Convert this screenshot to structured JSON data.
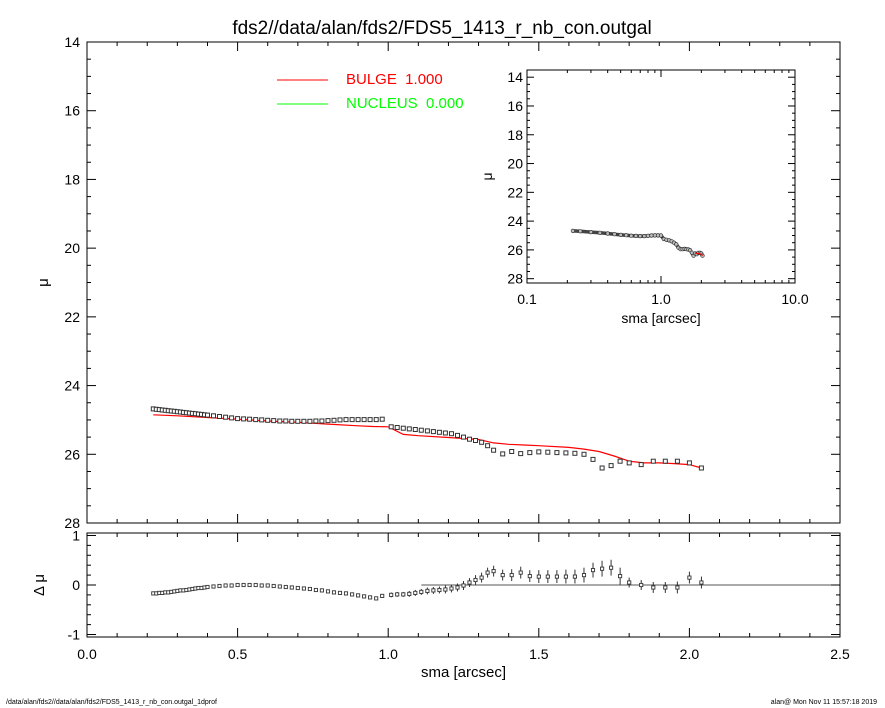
{
  "title": "fds2//data/alan/fds2/FDS5_1413_r_nb_con.outgal",
  "footer": {
    "left": "/data/alan/fds2//data/alan/fds2/FDS5_1413_r_nb_con.outgal_1dprof",
    "right": "alan@  Mon Nov 11 15:57:18 2019"
  },
  "colors": {
    "bulge": "#ff0000",
    "nucleus": "#00ff00",
    "data": "#000000",
    "background": "#ffffff"
  },
  "chart_data": [
    {
      "id": "main-profile",
      "type": "scatter",
      "xlabel": "",
      "ylabel": "μ",
      "xlim": [
        0.0,
        2.5
      ],
      "ylim": [
        28,
        14
      ],
      "y_inverted": true,
      "yticks": [
        14,
        16,
        18,
        20,
        22,
        24,
        26,
        28
      ],
      "ytick_labels": [
        "14",
        "16",
        "18",
        "20",
        "22",
        "24",
        "26",
        "28"
      ],
      "legend": {
        "placement": "top-center",
        "entries": [
          {
            "label": "BULGE  1.000",
            "color": "#ff0000"
          },
          {
            "label": "NUCLEUS  0.000",
            "color": "#00ff00"
          }
        ]
      },
      "series": [
        {
          "name": "BULGE  1.000",
          "kind": "line",
          "color": "#ff0000",
          "x": [
            0.22,
            0.3,
            0.4,
            0.5,
            0.6,
            0.7,
            0.8,
            0.9,
            0.95,
            1.0,
            1.05,
            1.1,
            1.2,
            1.3,
            1.35,
            1.4,
            1.45,
            1.5,
            1.6,
            1.65,
            1.7,
            1.75,
            1.8,
            1.85,
            1.9,
            1.95,
            2.0,
            2.04
          ],
          "y": [
            24.85,
            24.88,
            24.93,
            24.98,
            25.03,
            25.07,
            25.12,
            25.17,
            25.19,
            25.2,
            25.42,
            25.46,
            25.51,
            25.57,
            25.67,
            25.71,
            25.73,
            25.75,
            25.8,
            25.85,
            25.92,
            26.05,
            26.2,
            26.25,
            26.25,
            26.27,
            26.3,
            26.4
          ]
        },
        {
          "name": "",
          "kind": "points",
          "color": "#000000",
          "x": [
            0.22,
            0.23,
            0.24,
            0.25,
            0.26,
            0.27,
            0.28,
            0.29,
            0.3,
            0.31,
            0.32,
            0.33,
            0.34,
            0.35,
            0.36,
            0.37,
            0.38,
            0.39,
            0.4,
            0.42,
            0.44,
            0.46,
            0.48,
            0.5,
            0.52,
            0.54,
            0.56,
            0.58,
            0.6,
            0.62,
            0.64,
            0.66,
            0.68,
            0.7,
            0.72,
            0.74,
            0.76,
            0.78,
            0.8,
            0.82,
            0.84,
            0.86,
            0.88,
            0.9,
            0.92,
            0.94,
            0.96,
            0.98,
            1.01,
            1.03,
            1.05,
            1.07,
            1.09,
            1.11,
            1.13,
            1.15,
            1.17,
            1.19,
            1.21,
            1.23,
            1.25,
            1.27,
            1.29,
            1.31,
            1.33,
            1.35,
            1.38,
            1.41,
            1.44,
            1.47,
            1.5,
            1.53,
            1.56,
            1.59,
            1.62,
            1.65,
            1.68,
            1.71,
            1.74,
            1.77,
            1.8,
            1.84,
            1.88,
            1.92,
            1.96,
            2.0,
            2.04
          ],
          "y": [
            24.68,
            24.69,
            24.7,
            24.71,
            24.72,
            24.73,
            24.74,
            24.75,
            24.76,
            24.77,
            24.78,
            24.79,
            24.8,
            24.81,
            24.82,
            24.83,
            24.84,
            24.85,
            24.86,
            24.88,
            24.9,
            24.92,
            24.94,
            24.96,
            24.97,
            24.98,
            24.99,
            25.0,
            25.01,
            25.02,
            25.03,
            25.03,
            25.04,
            25.04,
            25.04,
            25.04,
            25.03,
            25.03,
            25.02,
            25.01,
            25.0,
            24.99,
            24.99,
            24.99,
            24.99,
            24.99,
            24.99,
            24.98,
            25.2,
            25.22,
            25.24,
            25.26,
            25.28,
            25.3,
            25.32,
            25.34,
            25.36,
            25.38,
            25.4,
            25.45,
            25.5,
            25.56,
            25.6,
            25.65,
            25.75,
            25.88,
            25.99,
            25.92,
            25.98,
            25.95,
            25.93,
            25.94,
            25.95,
            25.96,
            25.97,
            26.0,
            26.15,
            26.4,
            26.33,
            26.2,
            26.25,
            26.3,
            26.2,
            26.2,
            26.2,
            26.25,
            26.4
          ]
        }
      ]
    },
    {
      "id": "residuals",
      "type": "scatter",
      "xlabel": "sma [arcsec]",
      "ylabel": "Δ μ",
      "xlim": [
        0.0,
        2.5
      ],
      "ylim": [
        -1,
        1
      ],
      "xticks": [
        0.0,
        0.5,
        1.0,
        1.5,
        2.0,
        2.5
      ],
      "xtick_labels": [
        "0.0",
        "0.5",
        "1.0",
        "1.5",
        "2.0",
        "2.5"
      ],
      "yticks": [
        -1,
        0,
        1
      ],
      "ytick_labels": [
        "-1",
        "0",
        "1"
      ],
      "zero_line_x": [
        1.11,
        2.5
      ],
      "series": [
        {
          "name": "",
          "kind": "points-with-errors",
          "color": "#000000",
          "x": [
            0.22,
            0.23,
            0.24,
            0.25,
            0.26,
            0.27,
            0.28,
            0.29,
            0.3,
            0.31,
            0.32,
            0.33,
            0.34,
            0.35,
            0.36,
            0.37,
            0.38,
            0.39,
            0.4,
            0.42,
            0.44,
            0.46,
            0.48,
            0.5,
            0.52,
            0.54,
            0.56,
            0.58,
            0.6,
            0.62,
            0.64,
            0.66,
            0.68,
            0.7,
            0.72,
            0.74,
            0.76,
            0.78,
            0.8,
            0.82,
            0.84,
            0.86,
            0.88,
            0.9,
            0.92,
            0.94,
            0.96,
            0.98,
            1.01,
            1.03,
            1.05,
            1.07,
            1.09,
            1.11,
            1.13,
            1.15,
            1.17,
            1.19,
            1.21,
            1.23,
            1.25,
            1.27,
            1.29,
            1.31,
            1.33,
            1.35,
            1.38,
            1.41,
            1.44,
            1.47,
            1.5,
            1.53,
            1.56,
            1.59,
            1.62,
            1.65,
            1.68,
            1.71,
            1.74,
            1.77,
            1.8,
            1.84,
            1.88,
            1.92,
            1.96,
            2.0,
            2.04
          ],
          "y": [
            -0.17,
            -0.17,
            -0.16,
            -0.16,
            -0.15,
            -0.15,
            -0.14,
            -0.13,
            -0.12,
            -0.11,
            -0.11,
            -0.1,
            -0.09,
            -0.08,
            -0.07,
            -0.06,
            -0.06,
            -0.05,
            -0.04,
            -0.03,
            -0.02,
            -0.01,
            -0.01,
            0.0,
            0.0,
            0.0,
            0.0,
            -0.01,
            -0.01,
            -0.02,
            -0.03,
            -0.04,
            -0.05,
            -0.06,
            -0.07,
            -0.08,
            -0.1,
            -0.11,
            -0.13,
            -0.15,
            -0.16,
            -0.17,
            -0.19,
            -0.21,
            -0.23,
            -0.25,
            -0.27,
            -0.22,
            -0.2,
            -0.19,
            -0.19,
            -0.18,
            -0.16,
            -0.14,
            -0.12,
            -0.11,
            -0.1,
            -0.09,
            -0.07,
            -0.05,
            -0.01,
            0.05,
            0.1,
            0.15,
            0.25,
            0.28,
            0.2,
            0.2,
            0.25,
            0.18,
            0.17,
            0.17,
            0.17,
            0.17,
            0.17,
            0.2,
            0.3,
            0.33,
            0.35,
            0.18,
            0.05,
            0.0,
            -0.05,
            -0.05,
            -0.05,
            0.15,
            0.05
          ],
          "yerr": [
            0.02,
            0.02,
            0.02,
            0.02,
            0.02,
            0.02,
            0.02,
            0.02,
            0.02,
            0.02,
            0.02,
            0.02,
            0.02,
            0.02,
            0.02,
            0.02,
            0.02,
            0.02,
            0.02,
            0.02,
            0.02,
            0.02,
            0.02,
            0.02,
            0.02,
            0.02,
            0.02,
            0.02,
            0.02,
            0.02,
            0.02,
            0.02,
            0.02,
            0.02,
            0.02,
            0.02,
            0.02,
            0.02,
            0.02,
            0.02,
            0.02,
            0.02,
            0.02,
            0.02,
            0.02,
            0.02,
            0.02,
            0.03,
            0.05,
            0.05,
            0.05,
            0.06,
            0.06,
            0.06,
            0.07,
            0.07,
            0.07,
            0.08,
            0.08,
            0.08,
            0.09,
            0.09,
            0.1,
            0.1,
            0.1,
            0.11,
            0.11,
            0.12,
            0.12,
            0.12,
            0.13,
            0.13,
            0.13,
            0.14,
            0.14,
            0.15,
            0.15,
            0.16,
            0.16,
            0.17,
            0.1,
            0.1,
            0.11,
            0.11,
            0.12,
            0.12,
            0.12
          ]
        }
      ]
    },
    {
      "id": "inset-log-profile",
      "type": "scatter",
      "xlabel": "sma [arcsec]",
      "ylabel": "μ",
      "x_scale": "log",
      "xlim": [
        0.1,
        10.0
      ],
      "ylim": [
        28,
        14
      ],
      "y_inverted": true,
      "xticks": [
        0.1,
        1.0,
        10.0
      ],
      "xtick_labels": [
        "0.1",
        "1.0",
        "10.0"
      ],
      "yticks": [
        14,
        16,
        18,
        20,
        22,
        24,
        26,
        28
      ],
      "ytick_labels": [
        "14",
        "16",
        "18",
        "20",
        "22",
        "24",
        "26",
        "28"
      ],
      "series": [
        {
          "name": "",
          "kind": "points",
          "color": "#000000",
          "x": [
            0.22,
            0.25,
            0.3,
            0.35,
            0.4,
            0.45,
            0.5,
            0.55,
            0.6,
            0.65,
            0.7,
            0.75,
            0.8,
            0.85,
            0.9,
            0.95,
            1.0,
            1.05,
            1.1,
            1.15,
            1.2,
            1.25,
            1.3,
            1.35,
            1.4,
            1.45,
            1.5,
            1.55,
            1.6,
            1.65,
            1.7,
            1.75,
            1.8,
            1.85,
            1.9,
            1.95,
            2.0,
            2.04
          ],
          "y": [
            24.68,
            24.71,
            24.76,
            24.81,
            24.86,
            24.91,
            24.96,
            24.98,
            25.01,
            25.03,
            25.04,
            25.04,
            25.02,
            25.0,
            24.99,
            24.99,
            25.0,
            25.24,
            25.3,
            25.34,
            25.4,
            25.5,
            25.62,
            25.85,
            25.95,
            25.95,
            25.93,
            25.95,
            25.97,
            26.02,
            26.2,
            26.4,
            26.25,
            26.3,
            26.2,
            26.2,
            26.25,
            26.4
          ]
        },
        {
          "name": "",
          "kind": "line",
          "color": "#ff0000",
          "x": [
            1.8,
            1.85,
            1.9,
            1.95,
            2.0,
            2.04
          ],
          "y": [
            26.2,
            26.25,
            26.25,
            26.27,
            26.3,
            26.4
          ]
        }
      ]
    }
  ]
}
